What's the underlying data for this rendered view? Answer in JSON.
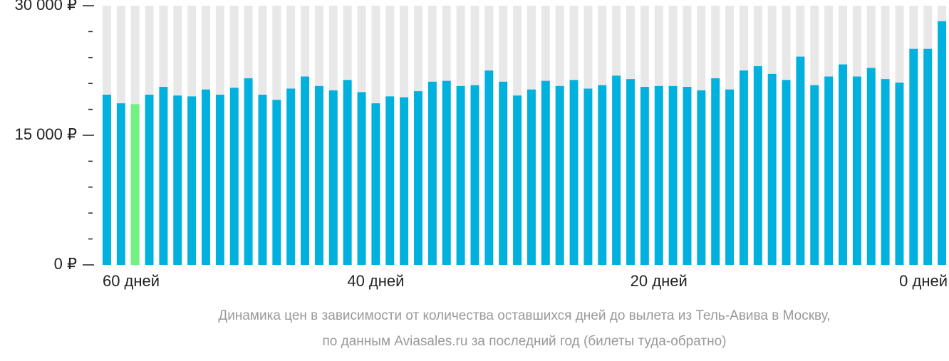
{
  "chart_data": {
    "type": "bar",
    "categories": [
      "60 дней",
      null,
      null,
      null,
      null,
      null,
      null,
      null,
      null,
      null,
      null,
      null,
      null,
      null,
      null,
      null,
      null,
      null,
      null,
      "40 дней",
      null,
      null,
      null,
      null,
      null,
      null,
      null,
      null,
      null,
      null,
      null,
      null,
      null,
      null,
      null,
      null,
      null,
      null,
      null,
      "20 дней",
      null,
      null,
      null,
      null,
      null,
      null,
      null,
      null,
      null,
      null,
      null,
      null,
      null,
      null,
      null,
      null,
      null,
      null,
      null,
      "0 дней"
    ],
    "values": [
      19700,
      18700,
      18600,
      19700,
      20600,
      19600,
      19500,
      20300,
      19700,
      20500,
      21600,
      19700,
      19100,
      20400,
      21800,
      20700,
      20200,
      21400,
      20000,
      18700,
      19500,
      19400,
      20100,
      21200,
      21300,
      20700,
      20800,
      22500,
      21200,
      19600,
      20300,
      21300,
      20700,
      21400,
      20400,
      20800,
      21900,
      21500,
      20600,
      20700,
      20700,
      20600,
      20200,
      21600,
      20300,
      22500,
      23000,
      22100,
      21400,
      24100,
      20800,
      21800,
      23200,
      21800,
      22800,
      21500,
      21100,
      25000,
      25000,
      28200
    ],
    "color": "#00b0dd",
    "highlight_index": 2,
    "highlight_color": "#6ff27f",
    "background_color": "#e8e8e8",
    "ylim": [
      0,
      30000
    ],
    "yticks": [
      {
        "value": 0,
        "label": "0 ₽"
      },
      {
        "value": 15000,
        "label": "15 000 ₽"
      },
      {
        "value": 30000,
        "label": "30 000 ₽"
      }
    ],
    "minor_yticks": [
      3000,
      6000,
      9000,
      12000,
      18000,
      21000,
      24000,
      27000
    ],
    "caption": [
      "Динамика цен в зависимости от количества оставшихся дней до вылета из Тель-Авива в Москву,",
      "по данным Aviasales.ru за последний год (билеты туда-обратно)"
    ]
  }
}
